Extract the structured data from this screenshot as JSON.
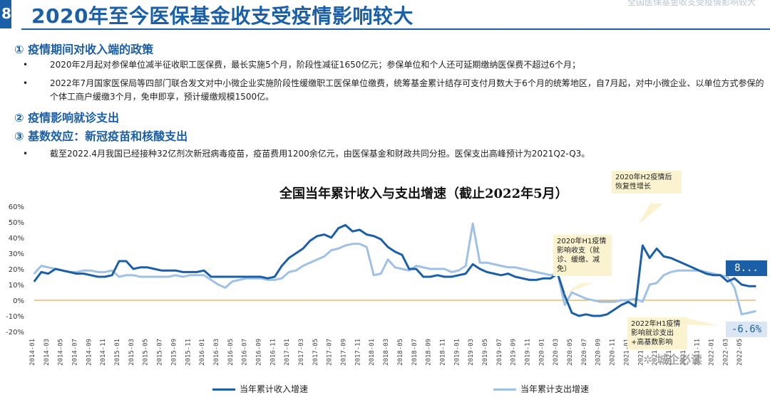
{
  "header": {
    "slide_number": "8",
    "title": "2020年至今医保基金收支受疫情影响较大",
    "top_tag": "全国医保基金收支受疫情影响较大"
  },
  "sections": [
    {
      "heading": "① 疫情期间对收入端的政策",
      "bullets": [
        "2020年2月起对参保单位减半征收职工医保费，最长实施5个月，阶段性减征1650亿元；参保单位和个人还可延期缴纳医保费不超过6个月；",
        "2022年7月国家医保局等四部门联合发文对中小微企业实施阶段性缓缴职工医保单位缴费，统筹基金累计结存可支付月数大于6个月的统筹地区，自7月起，对中小微企业、以单位方式参保的个体工商户缓缴3个月，免申即享，预计缓缴规模1500亿。"
      ]
    },
    {
      "heading": "② 疫情影响就诊支出",
      "bullets": []
    },
    {
      "heading": "③ 基数效应：新冠疫苗和核酸支出",
      "bullets": [
        "截至2022.4月我国已经接种32亿剂次新冠病毒疫苗，疫苗费用1200余亿元，由医保基金和财政共同分担。医保支出高峰预计为2021Q2-Q3。"
      ]
    }
  ],
  "bullet_symbol": "•",
  "callouts": {
    "h2_2020": "2020年H2疫情后恢复性增长",
    "h1_2020": "2020年H1疫情影响收支（就诊、缓缴、减免）",
    "h1_2022": "2022年H1疫情影响就诊支出+高基数影响"
  },
  "badges": {
    "income_last": "8...",
    "expense_last": "-6.6%"
  },
  "legend": {
    "income": "当年累计收入增速",
    "expense": "当年累计支出增速"
  },
  "watermark": "✲ 城企必读",
  "colors": {
    "income": "#1a5fa8",
    "expense": "#9fc1e6",
    "zero_line": "#d49a2a",
    "title": "#1a5fa8",
    "callout_bg": "#fbf3cf"
  },
  "chart_data": {
    "type": "line",
    "title": "全国当年累计收入与支出增速（截止2022年5月）",
    "ylim": [
      -20,
      60
    ],
    "yticks": [
      "60%",
      "50%",
      "40%",
      "30%",
      "20%",
      "10%",
      "0%",
      "-10%",
      "-20%"
    ],
    "x_start": "2014-01",
    "x_tick_labels": [
      "2014-01",
      "2014-03",
      "2014-05",
      "2014-07",
      "2014-09",
      "2014-11",
      "2015-01",
      "2015-03",
      "2015-05",
      "2015-07",
      "2015-09",
      "2015-11",
      "2016-01",
      "2016-03",
      "2016-05",
      "2016-07",
      "2016-09",
      "2016-11",
      "2017-01",
      "2017-03",
      "2017-05",
      "2017-07",
      "2017-09",
      "2017-11",
      "2018-01",
      "2018-03",
      "2018-05",
      "2018-07",
      "2018-09",
      "2018-11",
      "2019-01",
      "2019-03",
      "2019-05",
      "2019-07",
      "2019-09",
      "2019-11",
      "2020-01",
      "2020-03",
      "2020-05",
      "2020-07",
      "2020-09",
      "2020-11",
      "2021-01",
      "2021-03",
      "2021-05",
      "2021-07",
      "2021-09",
      "2021-11",
      "2022-01",
      "2022-03",
      "2022-05"
    ],
    "series": [
      {
        "name": "当年累计收入增速",
        "values": [
          12,
          18,
          17,
          20,
          19,
          18,
          17,
          17,
          16,
          15,
          15,
          16,
          25,
          25,
          20,
          21,
          21,
          20,
          19,
          19,
          19,
          18,
          18,
          18,
          19,
          15,
          15,
          15,
          15,
          15,
          15,
          15,
          15,
          14,
          15,
          22,
          27,
          30,
          33,
          38,
          41,
          42,
          40,
          46,
          48,
          44,
          45,
          42,
          41,
          39,
          34,
          31,
          29,
          20,
          20,
          15,
          15,
          16,
          15,
          15,
          16,
          17,
          23,
          20,
          18,
          17,
          16,
          17,
          15,
          14,
          13,
          13,
          14,
          14,
          17,
          3,
          -8,
          -10,
          -9,
          -10,
          -10,
          -9,
          -6,
          -3,
          -1,
          -4,
          35,
          27,
          33,
          28,
          27,
          25,
          23,
          21,
          19,
          17,
          16,
          16,
          12,
          14,
          10,
          9,
          9
        ]
      },
      {
        "name": "当年累计支出增速",
        "values": [
          17,
          22,
          21,
          20,
          19,
          18,
          18,
          19,
          19,
          18,
          18,
          19,
          15,
          16,
          16,
          15,
          15,
          15,
          15,
          15,
          16,
          15,
          16,
          16,
          16,
          13,
          10,
          8,
          12,
          13,
          14,
          14,
          14,
          13,
          13,
          14,
          18,
          19,
          22,
          24,
          26,
          28,
          32,
          33,
          35,
          36,
          36,
          34,
          16,
          17,
          26,
          21,
          20,
          19,
          22,
          21,
          20,
          20,
          20,
          18,
          19,
          22,
          49,
          24,
          24,
          23,
          22,
          21,
          21,
          20,
          19,
          18,
          17,
          16,
          17,
          -3,
          5,
          3,
          1,
          0,
          -1,
          -1,
          -1,
          0,
          0,
          1,
          -1,
          10,
          11,
          16,
          18,
          19,
          19,
          19,
          19,
          18,
          17,
          16,
          15,
          8,
          -9,
          -8,
          -7
        ]
      }
    ],
    "xlabel": "",
    "ylabel": "",
    "grid": false,
    "legend": "bottom"
  }
}
